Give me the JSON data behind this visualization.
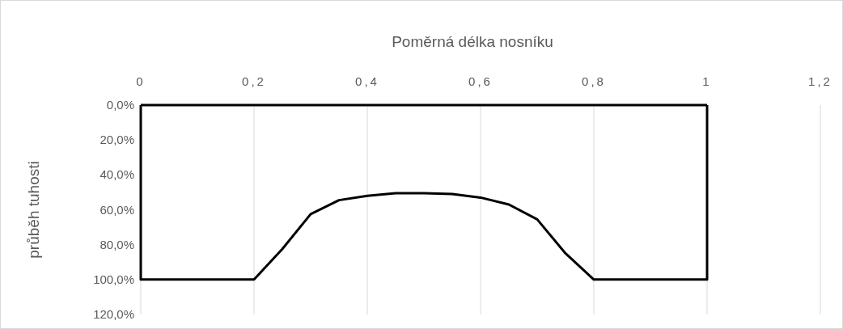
{
  "chart_data": {
    "type": "line",
    "xlabel": "Poměrná délka nosníku",
    "ylabel": "průběh tuhosti",
    "x": [
      0,
      0,
      0.2,
      0.25,
      0.3,
      0.35,
      0.4,
      0.45,
      0.5,
      0.55,
      0.6,
      0.65,
      0.7,
      0.75,
      0.8,
      1,
      1
    ],
    "series": [
      {
        "color": "#000000",
        "values": [
          0,
          100,
          100,
          82.5,
          62.5,
          54.5,
          52,
          50.5,
          50.5,
          51,
          53,
          57,
          65.5,
          85,
          100,
          100,
          0
        ]
      },
      {
        "color": "#000000",
        "x": [
          1,
          0
        ],
        "values": [
          0,
          0
        ]
      }
    ],
    "xlim": [
      0,
      1.2
    ],
    "xticks": [
      0,
      {
        "value": 0.2,
        "label": "0,2"
      },
      {
        "value": 0.4,
        "label": "0,4"
      },
      {
        "value": 0.6,
        "label": "0,6"
      },
      {
        "value": 0.8,
        "label": "0,8"
      },
      1,
      {
        "value": 1.2,
        "label": "1,2"
      }
    ],
    "ylim": [
      120,
      0
    ],
    "yticks": [
      {
        "value": 0,
        "label": "0,0%"
      },
      {
        "value": 20,
        "label": "20,0%"
      },
      {
        "value": 40,
        "label": "40,0%"
      },
      {
        "value": 60,
        "label": "60,0%"
      },
      {
        "value": 80,
        "label": "80,0%"
      },
      {
        "value": 100,
        "label": "100,0%"
      },
      {
        "value": 120,
        "label": "120,0%"
      }
    ],
    "grid": "x",
    "marker": "none",
    "line_style": "solid"
  }
}
